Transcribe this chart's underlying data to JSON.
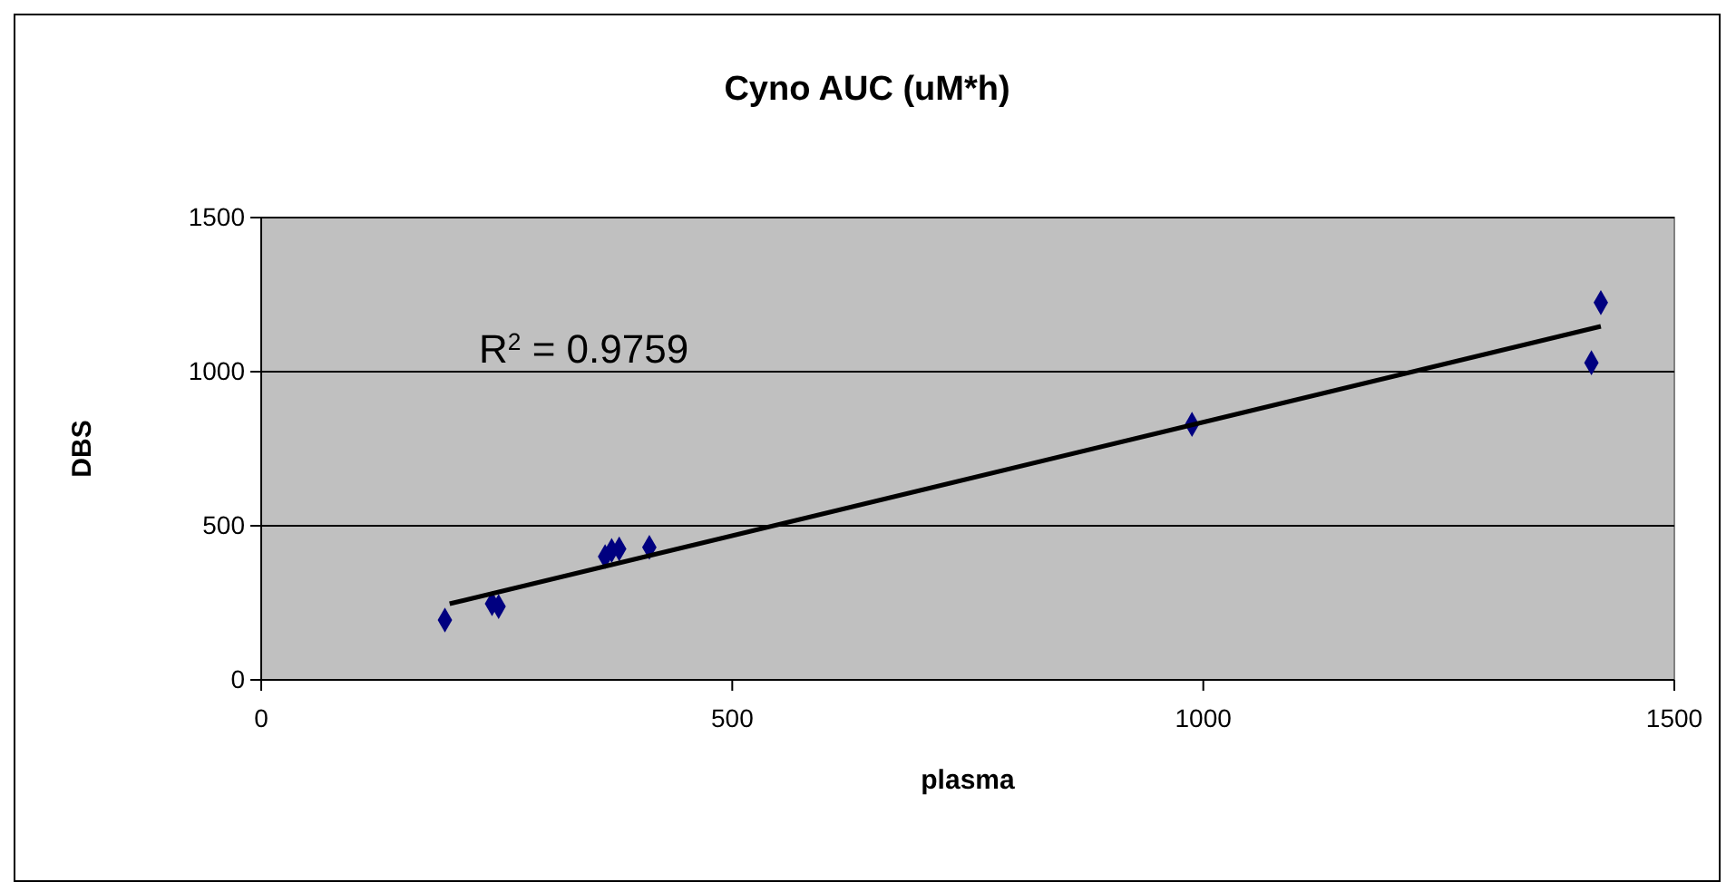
{
  "chart_data": {
    "type": "scatter",
    "title": "Cyno AUC (uM*h)",
    "xlabel": "plasma",
    "ylabel": "DBS",
    "xlim": [
      0,
      1500
    ],
    "xticks": [
      0,
      500,
      1000,
      1500
    ],
    "ylim": [
      0,
      1500
    ],
    "yticks": [
      0,
      500,
      1000,
      1500
    ],
    "grid": "y",
    "marker": "diamond",
    "annotations": [
      "R$^{2}$ = 0.9759"
    ],
    "series": [
      {
        "color": "#000080",
        "x": [
          195,
          245,
          252,
          365,
          372,
          380,
          412,
          988,
          1412,
          1422
        ],
        "values": [
          194,
          247,
          238,
          400,
          420,
          425,
          430,
          829,
          1029,
          1224
        ]
      },
      {
        "type": "line",
        "color": "#000000",
        "line_style": "solid",
        "marker": "none",
        "x": [
          200,
          1422
        ],
        "values": [
          247,
          1147
        ]
      }
    ]
  }
}
